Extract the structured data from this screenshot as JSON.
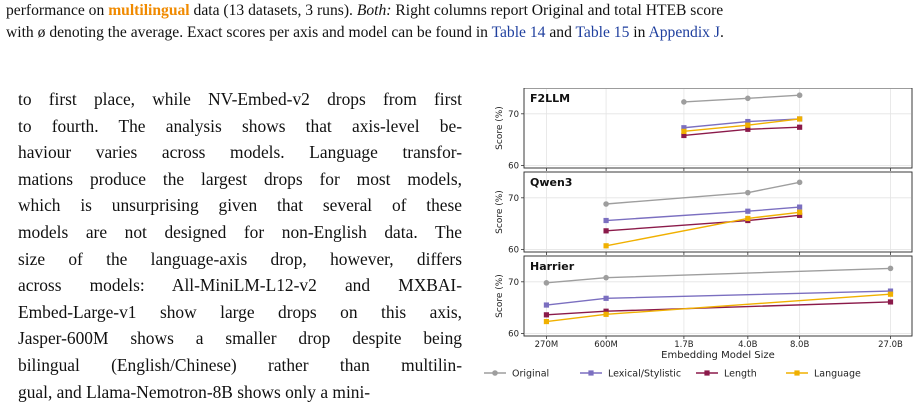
{
  "caption": {
    "line1_a": "performance on ",
    "line1_hl": "multilingual",
    "line1_b": " data (13 datasets, 3 runs). ",
    "line1_em": "Both:",
    "line1_c": " Right columns report Original and total HTEB score",
    "line2_a": "with ø denoting the average. Exact scores per axis and model can be found in ",
    "ref_t14": "Table 14",
    "line2_and": " and ",
    "ref_t15": "Table 15",
    "line2_in": " in ",
    "ref_app": "Appendix J",
    "line2_end": "."
  },
  "body_lines": [
    "to first place, while NV-Embed-v2 drops from first",
    "to fourth. The analysis shows that axis-level be-",
    "haviour varies across models. Language transfor-",
    "mations produce the largest drops for most models,",
    "which is unsurprising given that several of these",
    "models are not designed for non-English data. The",
    "size of the language-axis drop, however, differs",
    "across models: All-MiniLM-L12-v2 and MXBAI-",
    "Embed-Large-v1 show large drops on this axis,",
    "Jasper-600M shows a smaller drop despite being",
    "bilingual (English/Chinese) rather than multilin-",
    "gual, and Llama-Nemotron-8B shows only a mini-"
  ],
  "chart_data": {
    "type": "line",
    "xlabel": "Embedding Model Size",
    "ylabel": "Score (%)",
    "x_ticks": [
      "270M",
      "600M",
      "1.7B",
      "4.0B",
      "8.0B",
      "27.0B"
    ],
    "x_values": [
      0.27,
      0.6,
      1.7,
      4.0,
      8.0,
      27.0
    ],
    "x_scale": "log",
    "colors": {
      "Original": "#9e9e9e",
      "Lexical/Stylistic": "#7b6fc0",
      "Length": "#8b1a4a",
      "Language": "#f0b000"
    },
    "legend": [
      "Original",
      "Lexical/Stylistic",
      "Length",
      "Language"
    ],
    "panels": [
      {
        "title": "F2LLM",
        "ylim": [
          59.5,
          75
        ],
        "y_ticks": [
          60,
          70
        ],
        "series": [
          {
            "name": "Original",
            "x": [
              1.7,
              4.0,
              8.0
            ],
            "values": [
              72.3,
              73.0,
              73.6
            ]
          },
          {
            "name": "Lexical/Stylistic",
            "x": [
              1.7,
              4.0,
              8.0
            ],
            "values": [
              67.3,
              68.5,
              69.0
            ]
          },
          {
            "name": "Length",
            "x": [
              1.7,
              4.0,
              8.0
            ],
            "values": [
              65.8,
              67.0,
              67.4
            ]
          },
          {
            "name": "Language",
            "x": [
              1.7,
              4.0,
              8.0
            ],
            "values": [
              66.6,
              67.8,
              69.0
            ]
          }
        ]
      },
      {
        "title": "Qwen3",
        "ylim": [
          59.5,
          75
        ],
        "y_ticks": [
          60,
          70
        ],
        "series": [
          {
            "name": "Original",
            "x": [
              0.6,
              4.0,
              8.0
            ],
            "values": [
              68.8,
              71.0,
              73.0
            ]
          },
          {
            "name": "Lexical/Stylistic",
            "x": [
              0.6,
              4.0,
              8.0
            ],
            "values": [
              65.6,
              67.4,
              68.2
            ]
          },
          {
            "name": "Length",
            "x": [
              0.6,
              4.0,
              8.0
            ],
            "values": [
              63.6,
              65.6,
              66.6
            ]
          },
          {
            "name": "Language",
            "x": [
              0.6,
              4.0,
              8.0
            ],
            "values": [
              60.7,
              66.0,
              67.2
            ]
          }
        ]
      },
      {
        "title": "Harrier",
        "ylim": [
          59.5,
          75
        ],
        "y_ticks": [
          60,
          70
        ],
        "series": [
          {
            "name": "Original",
            "x": [
              0.27,
              0.6,
              27.0
            ],
            "values": [
              69.8,
              70.8,
              72.6
            ]
          },
          {
            "name": "Lexical/Stylistic",
            "x": [
              0.27,
              0.6,
              27.0
            ],
            "values": [
              65.5,
              66.8,
              68.2
            ]
          },
          {
            "name": "Length",
            "x": [
              0.27,
              0.6,
              27.0
            ],
            "values": [
              63.6,
              64.3,
              66.1
            ]
          },
          {
            "name": "Language",
            "x": [
              0.27,
              0.6,
              27.0
            ],
            "values": [
              62.3,
              63.7,
              67.6
            ]
          }
        ]
      }
    ]
  }
}
